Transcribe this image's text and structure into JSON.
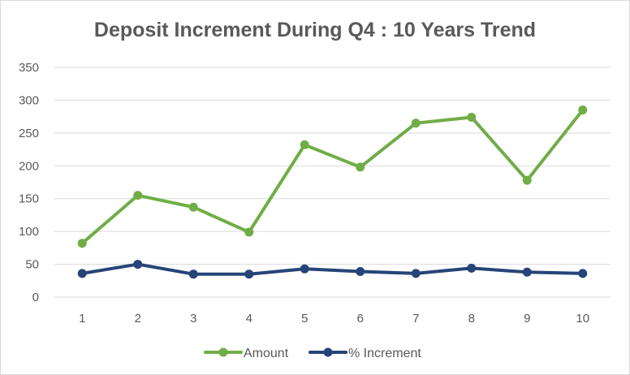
{
  "chart_data": {
    "type": "line",
    "title": "Deposit Increment During Q4 : 10 Years Trend",
    "xlabel": "",
    "ylabel": "",
    "ylim": [
      0,
      350
    ],
    "yticks": [
      0,
      50,
      100,
      150,
      200,
      250,
      300,
      350
    ],
    "x": [
      1,
      2,
      3,
      4,
      5,
      6,
      7,
      8,
      9,
      10
    ],
    "grid": true,
    "legend_position": "bottom",
    "series": [
      {
        "name": "Amount",
        "color": "#70ad47",
        "values": [
          82,
          155,
          137,
          99,
          232,
          198,
          265,
          274,
          178,
          285
        ]
      },
      {
        "name": "% Increment",
        "color": "#264478",
        "values": [
          36,
          50,
          35,
          35,
          43,
          39,
          36,
          44,
          38,
          36
        ]
      }
    ]
  }
}
